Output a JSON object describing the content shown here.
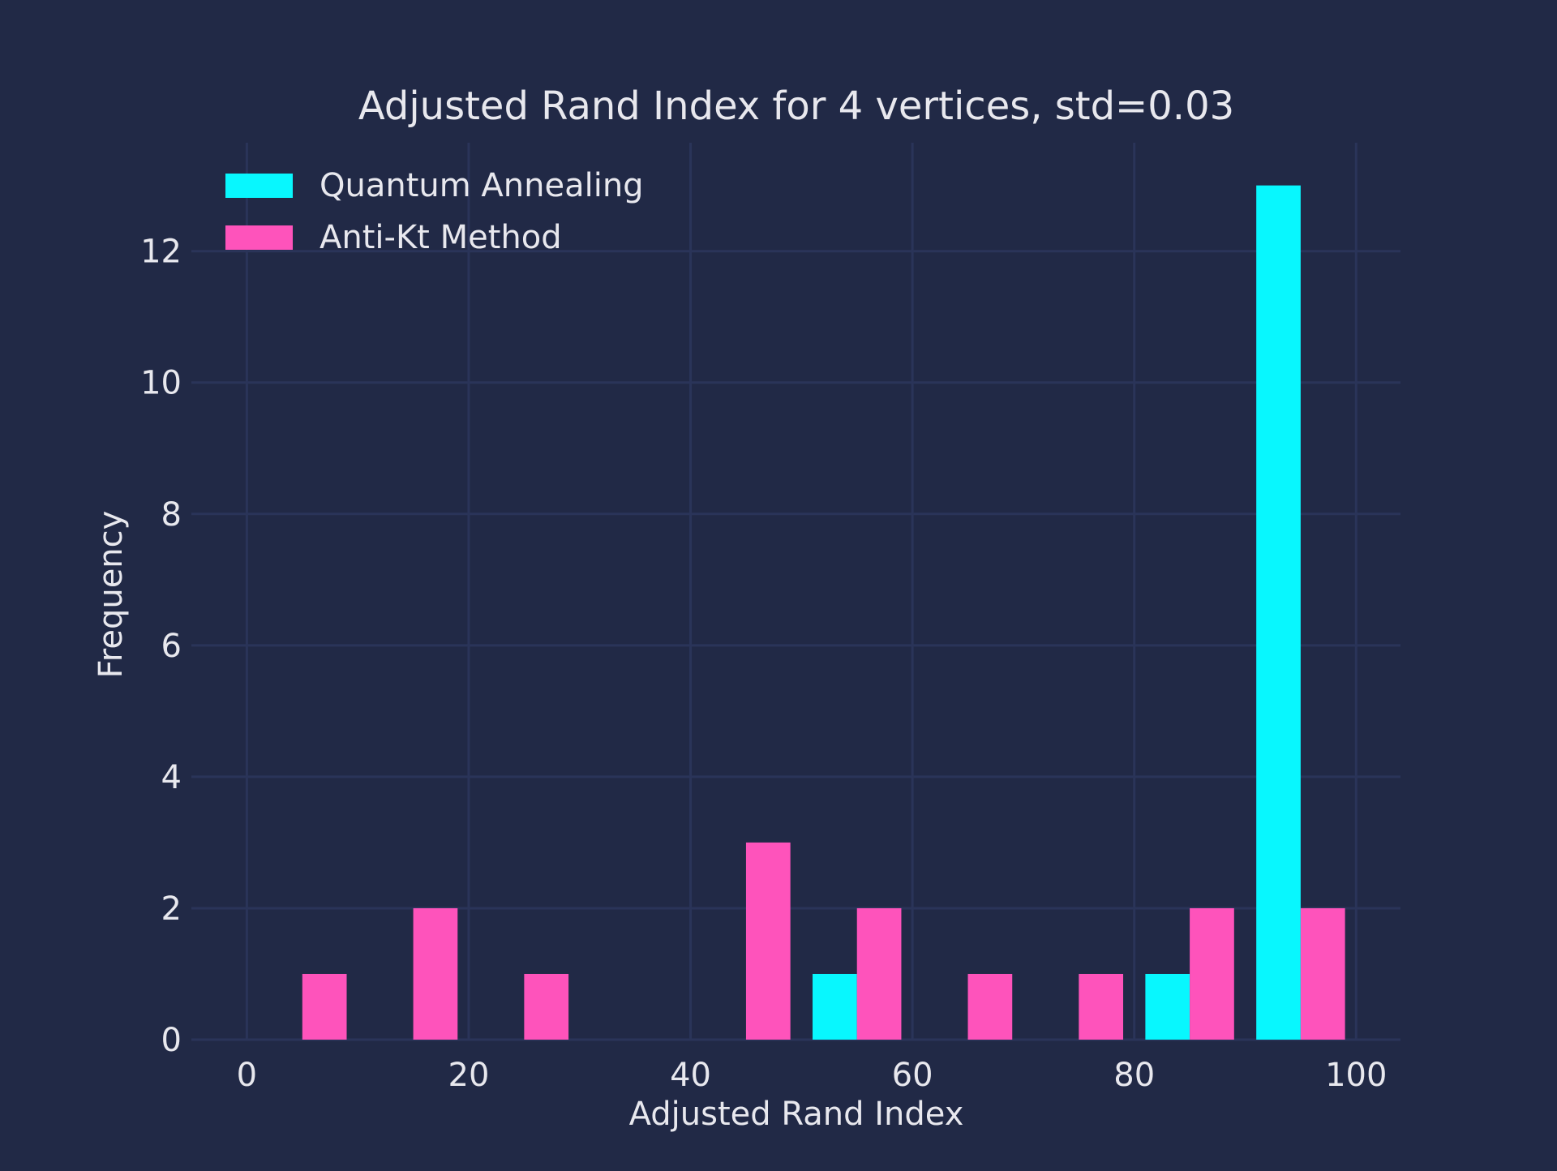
{
  "chart_data": {
    "type": "bar",
    "title": "Adjusted Rand Index for 4 vertices, std=0.03",
    "xlabel": "Adjusted Rand Index",
    "ylabel": "Frequency",
    "xlim": [
      -5,
      104
    ],
    "ylim": [
      0,
      13.65
    ],
    "x_ticks": [
      0,
      20,
      40,
      60,
      80,
      100
    ],
    "y_ticks": [
      0,
      2,
      4,
      6,
      8,
      10,
      12
    ],
    "grid": true,
    "legend_position": "top-left",
    "bin_edges": [
      0,
      10,
      20,
      30,
      40,
      50,
      60,
      70,
      80,
      90,
      100
    ],
    "series": [
      {
        "name": "Quantum Annealing",
        "color": "#08f7fe",
        "values": [
          0,
          0,
          0,
          0,
          0,
          1,
          0,
          0,
          1,
          13
        ]
      },
      {
        "name": "Anti-Kt Method",
        "color": "#fe53bb",
        "values": [
          1,
          2,
          1,
          0,
          3,
          2,
          1,
          1,
          2,
          2
        ]
      }
    ],
    "colors": {
      "background": "#212946",
      "grid": "#2a3459",
      "text": "#e8e8ee"
    }
  }
}
